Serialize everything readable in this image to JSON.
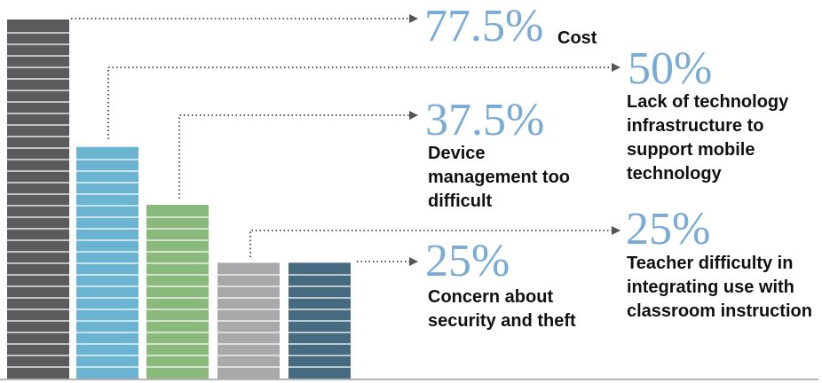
{
  "chart_data": {
    "type": "bar",
    "categories": [
      "Cost",
      "Lack of technology infrastructure to support mobile technology",
      "Device management too difficult",
      "Teacher difficulty in integrating use with classroom instruction",
      "Concern about security and theft"
    ],
    "values": [
      77.5,
      50,
      37.5,
      25,
      25
    ],
    "value_labels": [
      "77.5%",
      "50%",
      "37.5%",
      "25%",
      "25%"
    ],
    "colors": [
      "#5b5b5d",
      "#6ab4d2",
      "#89b97b",
      "#a9a9ac",
      "#466b80"
    ]
  }
}
